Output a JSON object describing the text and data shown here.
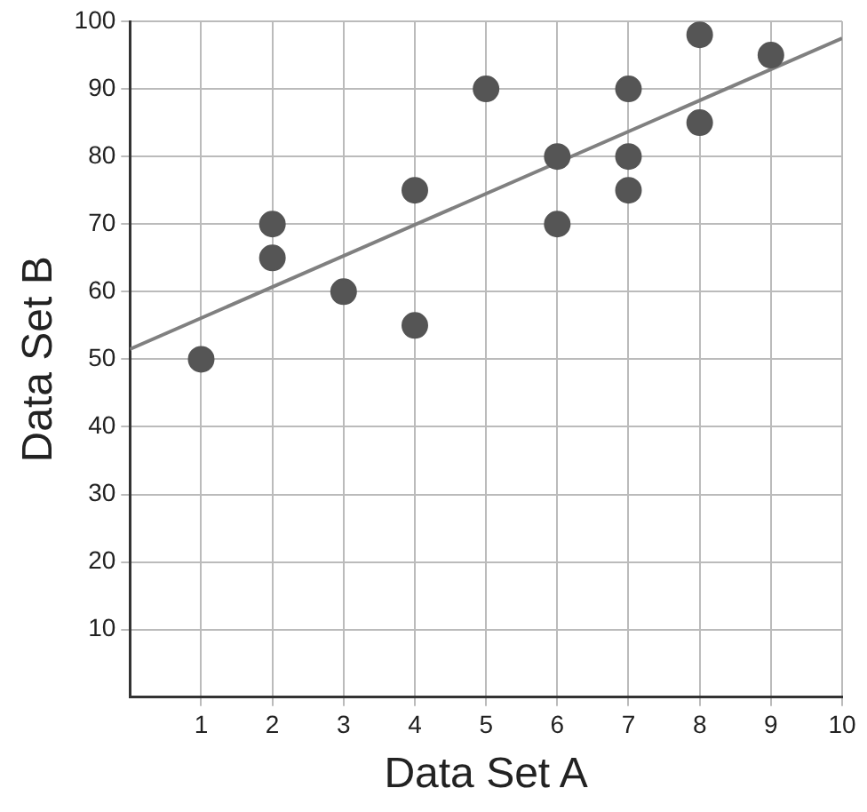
{
  "chart_data": {
    "type": "scatter",
    "xlabel": "Data Set A",
    "ylabel": "Data Set B",
    "xlim": [
      0,
      10
    ],
    "ylim": [
      0,
      100
    ],
    "xticks": [
      1,
      2,
      3,
      4,
      5,
      6,
      7,
      8,
      9,
      10
    ],
    "yticks": [
      10,
      20,
      30,
      40,
      50,
      60,
      70,
      80,
      90,
      100
    ],
    "grid": true,
    "series": [
      {
        "marker": "circle",
        "color": "#555555",
        "x": [
          1,
          2,
          2,
          3,
          4,
          4,
          5,
          6,
          6,
          7,
          7,
          7,
          8,
          8,
          9
        ],
        "values": [
          50,
          70,
          65,
          60,
          75,
          55,
          90,
          80,
          70,
          90,
          80,
          75,
          98,
          85,
          95
        ]
      },
      {
        "type": "line",
        "marker": "none",
        "color": "#808080",
        "x": [
          0,
          10
        ],
        "values": [
          51.5,
          97.5
        ]
      }
    ]
  }
}
